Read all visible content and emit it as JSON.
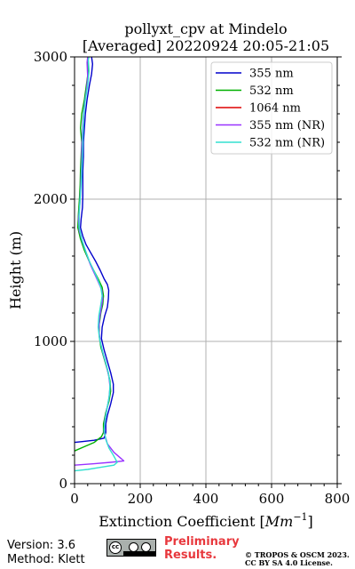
{
  "chart_data": {
    "type": "line",
    "title_lines": [
      "pollyxt_cpv at Mindelo",
      "[Averaged] 20220924 20:05-21:05"
    ],
    "xlabel_prefix": "Extinction Coefficient [",
    "xlabel_unit": "Mm",
    "xlabel_exp": "−1",
    "xlabel_suffix": "]",
    "ylabel": "Height (m)",
    "xlim": [
      0,
      800
    ],
    "ylim": [
      0,
      3000
    ],
    "xticks": [
      0,
      200,
      400,
      600,
      800
    ],
    "yticks": [
      0,
      1000,
      2000,
      3000
    ],
    "grid": true,
    "legend_position": "top-right",
    "series": [
      {
        "name": "355 nm",
        "color": "#0000cc",
        "points": [
          [
            0,
            290
          ],
          [
            20,
            295
          ],
          [
            60,
            305
          ],
          [
            90,
            320
          ],
          [
            95,
            360
          ],
          [
            95,
            420
          ],
          [
            100,
            480
          ],
          [
            110,
            560
          ],
          [
            118,
            640
          ],
          [
            118,
            700
          ],
          [
            110,
            780
          ],
          [
            100,
            860
          ],
          [
            90,
            940
          ],
          [
            82,
            1020
          ],
          [
            84,
            1100
          ],
          [
            92,
            1180
          ],
          [
            100,
            1240
          ],
          [
            103,
            1300
          ],
          [
            104,
            1360
          ],
          [
            100,
            1400
          ],
          [
            90,
            1440
          ],
          [
            78,
            1500
          ],
          [
            65,
            1560
          ],
          [
            50,
            1620
          ],
          [
            35,
            1680
          ],
          [
            25,
            1740
          ],
          [
            18,
            1800
          ],
          [
            20,
            1860
          ],
          [
            24,
            1940
          ],
          [
            25,
            2020
          ],
          [
            25,
            2100
          ],
          [
            25,
            2200
          ],
          [
            27,
            2300
          ],
          [
            27,
            2400
          ],
          [
            30,
            2500
          ],
          [
            33,
            2600
          ],
          [
            38,
            2700
          ],
          [
            45,
            2800
          ],
          [
            52,
            2880
          ],
          [
            55,
            2950
          ],
          [
            52,
            3000
          ]
        ]
      },
      {
        "name": "532 nm",
        "color": "#00b000",
        "points": [
          [
            0,
            230
          ],
          [
            30,
            260
          ],
          [
            60,
            290
          ],
          [
            82,
            330
          ],
          [
            88,
            360
          ],
          [
            88,
            420
          ],
          [
            95,
            500
          ],
          [
            105,
            580
          ],
          [
            110,
            650
          ],
          [
            108,
            720
          ],
          [
            100,
            800
          ],
          [
            90,
            880
          ],
          [
            80,
            960
          ],
          [
            75,
            1040
          ],
          [
            75,
            1120
          ],
          [
            80,
            1200
          ],
          [
            86,
            1260
          ],
          [
            88,
            1320
          ],
          [
            84,
            1380
          ],
          [
            72,
            1440
          ],
          [
            58,
            1500
          ],
          [
            45,
            1560
          ],
          [
            30,
            1640
          ],
          [
            18,
            1720
          ],
          [
            10,
            1800
          ],
          [
            12,
            1900
          ],
          [
            15,
            2000
          ],
          [
            17,
            2100
          ],
          [
            18,
            2200
          ],
          [
            20,
            2300
          ],
          [
            22,
            2400
          ],
          [
            18,
            2500
          ],
          [
            22,
            2600
          ],
          [
            30,
            2700
          ],
          [
            36,
            2800
          ],
          [
            42,
            2900
          ],
          [
            40,
            2960
          ],
          [
            42,
            3000
          ]
        ]
      },
      {
        "name": "1064 nm",
        "color": "#dd0000",
        "points": []
      },
      {
        "name": "355 nm (NR)",
        "color": "#9933ff",
        "points": [
          [
            0,
            130
          ],
          [
            60,
            140
          ],
          [
            110,
            150
          ],
          [
            150,
            160
          ],
          [
            140,
            180
          ],
          [
            120,
            220
          ],
          [
            100,
            280
          ],
          [
            90,
            360
          ],
          [
            92,
            440
          ],
          [
            98,
            520
          ],
          [
            105,
            600
          ],
          [
            108,
            680
          ],
          [
            104,
            760
          ],
          [
            96,
            840
          ],
          [
            86,
            920
          ],
          [
            78,
            1000
          ],
          [
            74,
            1080
          ],
          [
            76,
            1160
          ],
          [
            82,
            1240
          ],
          [
            86,
            1300
          ],
          [
            83,
            1360
          ],
          [
            72,
            1420
          ],
          [
            60,
            1480
          ],
          [
            48,
            1540
          ],
          [
            36,
            1620
          ],
          [
            24,
            1700
          ],
          [
            14,
            1780
          ],
          [
            12,
            1860
          ],
          [
            16,
            1960
          ],
          [
            18,
            2060
          ],
          [
            20,
            2160
          ],
          [
            22,
            2260
          ],
          [
            22,
            2360
          ],
          [
            24,
            2460
          ],
          [
            26,
            2560
          ],
          [
            30,
            2660
          ],
          [
            36,
            2760
          ],
          [
            40,
            2860
          ],
          [
            38,
            2960
          ],
          [
            40,
            3000
          ]
        ]
      },
      {
        "name": "532 nm (NR)",
        "color": "#33e0d0",
        "points": [
          [
            0,
            90
          ],
          [
            40,
            100
          ],
          [
            80,
            115
          ],
          [
            120,
            130
          ],
          [
            130,
            150
          ],
          [
            118,
            200
          ],
          [
            105,
            250
          ],
          [
            95,
            310
          ],
          [
            90,
            380
          ],
          [
            94,
            460
          ],
          [
            100,
            540
          ],
          [
            106,
            620
          ],
          [
            108,
            700
          ],
          [
            103,
            780
          ],
          [
            94,
            860
          ],
          [
            84,
            940
          ],
          [
            76,
            1020
          ],
          [
            72,
            1100
          ],
          [
            74,
            1180
          ],
          [
            80,
            1260
          ],
          [
            84,
            1320
          ],
          [
            80,
            1380
          ],
          [
            70,
            1440
          ],
          [
            58,
            1500
          ],
          [
            46,
            1560
          ],
          [
            33,
            1640
          ],
          [
            22,
            1720
          ],
          [
            14,
            1800
          ],
          [
            14,
            1900
          ],
          [
            17,
            2000
          ],
          [
            20,
            2100
          ],
          [
            22,
            2200
          ],
          [
            24,
            2300
          ],
          [
            25,
            2400
          ],
          [
            26,
            2500
          ],
          [
            28,
            2600
          ],
          [
            33,
            2700
          ],
          [
            40,
            2800
          ],
          [
            44,
            2900
          ],
          [
            42,
            2980
          ],
          [
            44,
            3000
          ]
        ]
      }
    ]
  },
  "footer": {
    "version": "Version: 3.6",
    "method": "Method: Klett",
    "preliminary_line1": "Preliminary",
    "preliminary_line2": "Results.",
    "copyright_line1": "© TROPOS & OSCM 2023.",
    "copyright_line2": "CC BY SA 4.0 License.",
    "badge_text": "cc"
  }
}
